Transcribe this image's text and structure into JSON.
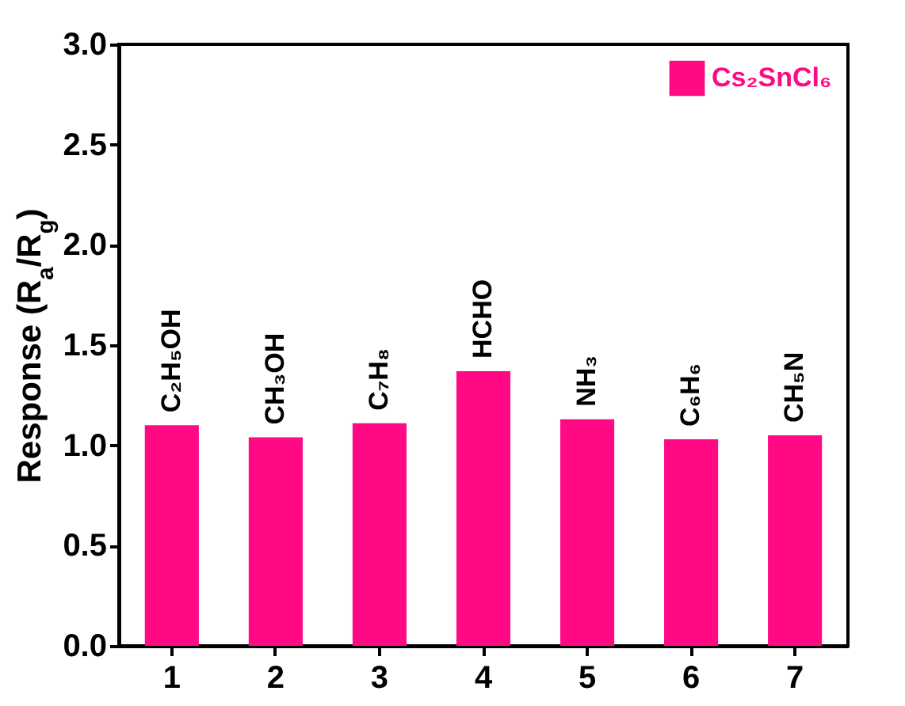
{
  "chart_data": {
    "type": "bar",
    "ylabel": "Response (R$_{a}$/R$_{g}$)",
    "categories": [
      "1",
      "2",
      "3",
      "4",
      "5",
      "6",
      "7"
    ],
    "series": [
      {
        "name": "Cs₂SnCl₆",
        "color": "#ff0a84",
        "values": [
          1.1,
          1.04,
          1.11,
          1.37,
          1.13,
          1.03,
          1.05
        ]
      }
    ],
    "ylim": [
      0,
      3.0
    ],
    "yticks": [
      {
        "value": 0,
        "label": "0.0"
      },
      {
        "value": 0.5,
        "label": "0.5"
      },
      {
        "value": 1,
        "label": "1.0"
      },
      {
        "value": 1.5,
        "label": "1.5"
      },
      {
        "value": 2,
        "label": "2.0"
      },
      {
        "value": 2.5,
        "label": "2.5"
      },
      {
        "value": 3,
        "label": "3.0"
      }
    ],
    "legend": "top right",
    "annotations": [
      {
        "text": "C₂H₅OH",
        "x": "1",
        "y": 1.1
      },
      {
        "text": "CH₃OH",
        "x": "2",
        "y": 1.04
      },
      {
        "text": "C₇H₈",
        "x": "3",
        "y": 1.11
      },
      {
        "text": "HCHO",
        "x": "4",
        "y": 1.37
      },
      {
        "text": "NH₃",
        "x": "5",
        "y": 1.13
      },
      {
        "text": "C₆H₆",
        "x": "6",
        "y": 1.03
      },
      {
        "text": "CH₅N",
        "x": "7",
        "y": 1.05
      }
    ]
  }
}
